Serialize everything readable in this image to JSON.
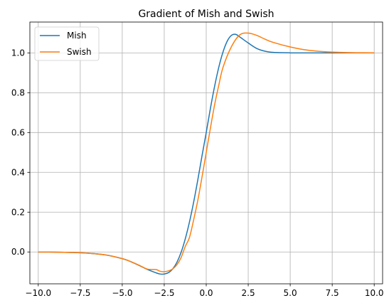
{
  "chart_data": {
    "type": "line",
    "title": "Gradient of Mish and Swish",
    "xlabel": "",
    "ylabel": "",
    "xlim": [
      -10.5,
      10.5
    ],
    "ylim": [
      -0.16,
      1.155
    ],
    "xticks": [
      -10.0,
      -7.5,
      -5.0,
      -2.5,
      0.0,
      2.5,
      5.0,
      7.5,
      10.0
    ],
    "xtick_labels": [
      "−10.0",
      "−7.5",
      "−5.0",
      "−2.5",
      "0.0",
      "2.5",
      "5.0",
      "7.5",
      "10.0"
    ],
    "yticks": [
      0.0,
      0.2,
      0.4,
      0.6,
      0.8,
      1.0
    ],
    "ytick_labels": [
      "0.0",
      "0.2",
      "0.4",
      "0.6",
      "0.8",
      "1.0"
    ],
    "grid": true,
    "legend_position": "top-left",
    "series": [
      {
        "name": "Mish",
        "color": "#1f77b4",
        "x": [
          -10,
          -9,
          -8,
          -7,
          -6,
          -5,
          -4.5,
          -4,
          -3.5,
          -3,
          -2.75,
          -2.5,
          -2.25,
          -2,
          -1.75,
          -1.5,
          -1.25,
          -1,
          -0.75,
          -0.5,
          -0.25,
          0,
          0.25,
          0.5,
          0.75,
          1,
          1.25,
          1.5,
          1.75,
          2,
          2.5,
          3,
          3.5,
          4,
          5,
          6,
          7,
          8,
          9,
          10
        ],
        "y": [
          -0.0004,
          -0.001,
          -0.0027,
          -0.0064,
          -0.0149,
          -0.0336,
          -0.0485,
          -0.0677,
          -0.0877,
          -0.1044,
          -0.1106,
          -0.1109,
          -0.104,
          -0.0855,
          -0.0526,
          -0.0029,
          0.0654,
          0.15,
          0.25,
          0.363,
          0.4835,
          0.6,
          0.7218,
          0.8328,
          0.929,
          1.0049,
          1.0589,
          1.0881,
          1.0933,
          1.08,
          1.05,
          1.0227,
          1.0085,
          1.0025,
          1.0002,
          1.0,
          1.0,
          1.0,
          1.0,
          1.0
        ]
      },
      {
        "name": "Swish",
        "color": "#ff7f0e",
        "x": [
          -10,
          -9,
          -8,
          -7,
          -6,
          -5,
          -4.5,
          -4,
          -3.5,
          -3,
          -2.75,
          -2.5,
          -2.25,
          -2,
          -1.75,
          -1.5,
          -1.25,
          -1,
          -0.75,
          -0.5,
          -0.25,
          0,
          0.25,
          0.5,
          0.75,
          1,
          1.5,
          2,
          2.5,
          3,
          3.5,
          4,
          5,
          6,
          7,
          8,
          9,
          10
        ],
        "y": [
          -0.0004,
          -0.001,
          -0.0027,
          -0.0064,
          -0.0148,
          -0.0332,
          -0.0481,
          -0.0665,
          -0.086,
          -0.0882,
          -0.0968,
          -0.099,
          -0.0951,
          -0.0854,
          -0.0646,
          -0.0291,
          0.0272,
          0.0723,
          0.1612,
          0.26,
          0.3773,
          0.5,
          0.6227,
          0.74,
          0.8388,
          0.9277,
          1.0312,
          1.0907,
          1.0995,
          1.0881,
          1.0688,
          1.0525,
          1.03,
          1.0141,
          1.0061,
          1.0025,
          1.001,
          1.0004
        ]
      }
    ]
  }
}
